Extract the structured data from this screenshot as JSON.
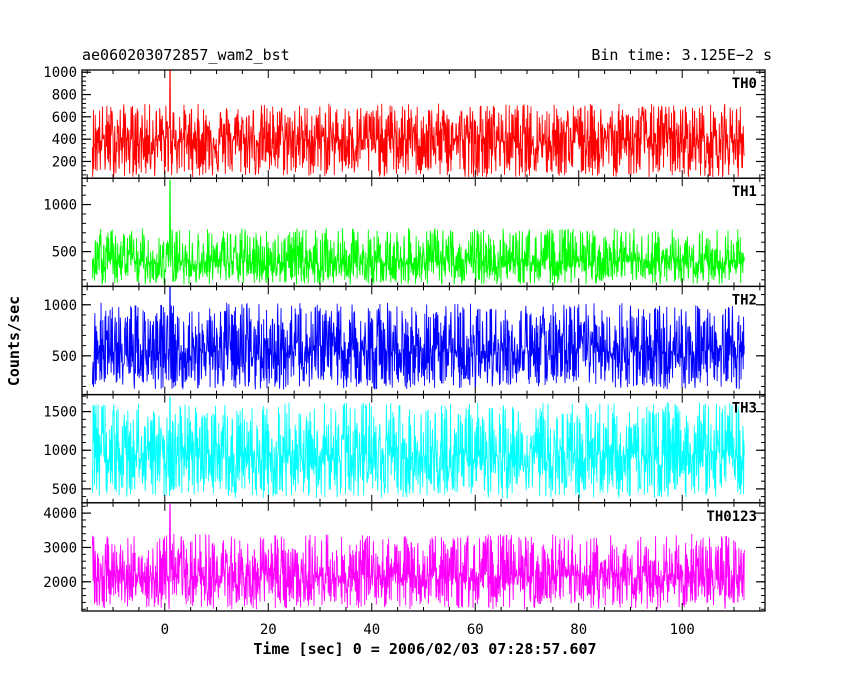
{
  "chart_data": {
    "type": "line",
    "title": "ae060203072857_wam2_bst",
    "subtitle": "Bin time: 3.125E−2 s",
    "xlabel": "Time [sec] 0 = 2006/02/03 07:28:57.607",
    "ylabel": "Counts/sec",
    "xlim": [
      -16,
      116
    ],
    "x_ticks": [
      0,
      20,
      40,
      60,
      80,
      100
    ],
    "x_tick_labels": [
      "0",
      "20",
      "40",
      "60",
      "80",
      "100"
    ],
    "x_data_range": [
      -14,
      112
    ],
    "bin_time": 0.03125,
    "grid": false,
    "panels": [
      {
        "name": "TH0",
        "color": "#ff0000",
        "ylim": [
          50,
          1020
        ],
        "y_ticks": [
          200,
          400,
          600,
          800,
          1000
        ],
        "y_tick_labels": [
          "200",
          "400",
          "600",
          "800",
          "1000"
        ],
        "mean": 400,
        "min": 60,
        "typical_max": 720,
        "peak": 1020,
        "peak_time": 1
      },
      {
        "name": "TH1",
        "color": "#00ff00",
        "ylim": [
          130,
          1280
        ],
        "y_ticks": [
          500,
          1000
        ],
        "y_tick_labels": [
          "500",
          "1000"
        ],
        "mean": 390,
        "min": 150,
        "typical_max": 750,
        "peak": 1260,
        "peak_time": 1
      },
      {
        "name": "TH2",
        "color": "#0000ff",
        "ylim": [
          120,
          1180
        ],
        "y_ticks": [
          500,
          1000
        ],
        "y_tick_labels": [
          "500",
          "1000"
        ],
        "mean": 540,
        "min": 170,
        "typical_max": 1020,
        "peak": 1170,
        "peak_time": 1
      },
      {
        "name": "TH3",
        "color": "#00ffff",
        "ylim": [
          320,
          1720
        ],
        "y_ticks": [
          500,
          1000,
          1500
        ],
        "y_tick_labels": [
          "500",
          "1000",
          "1500"
        ],
        "mean": 930,
        "min": 380,
        "typical_max": 1620,
        "peak": 1690,
        "peak_time": 1
      },
      {
        "name": "TH0123",
        "color": "#ff00ff",
        "ylim": [
          1150,
          4300
        ],
        "y_ticks": [
          2000,
          3000,
          4000
        ],
        "y_tick_labels": [
          "2000",
          "3000",
          "4000"
        ],
        "mean": 2150,
        "min": 1200,
        "typical_max": 3400,
        "peak": 4250,
        "peak_time": 1
      }
    ]
  }
}
